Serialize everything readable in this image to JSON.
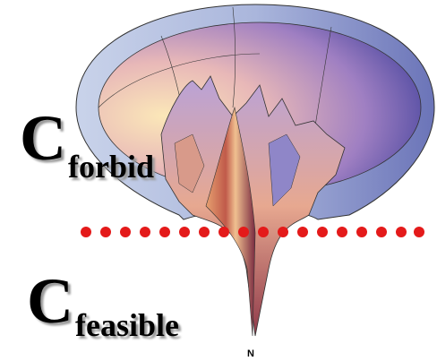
{
  "labels": {
    "forbid": {
      "main": "C",
      "sub": "forbid"
    },
    "feasible": {
      "main": "C",
      "sub": "feasible"
    },
    "axis": "N"
  }
}
